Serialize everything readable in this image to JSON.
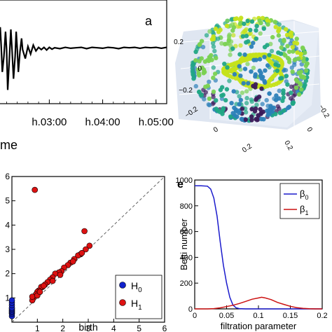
{
  "chart_data": [
    {
      "type": "line",
      "panel_letter": "a",
      "xlabel_fragment": "me",
      "x_ticks": [
        "h.03:00",
        "h.04:00",
        "h.05:00"
      ],
      "x_tick_values_hours": [
        3,
        4,
        5
      ],
      "xlim_hours": [
        2.05,
        5.2
      ],
      "ylim": [
        -1.0,
        1.0
      ],
      "series": [
        {
          "x_hours": [
            2.05,
            2.08,
            2.1,
            2.12,
            2.15,
            2.18,
            2.2,
            2.22,
            2.25,
            2.28,
            2.3,
            2.33,
            2.36,
            2.38,
            2.4,
            2.42,
            2.45,
            2.48,
            2.5,
            2.55,
            2.6,
            2.65,
            2.7,
            2.75,
            2.8,
            2.85,
            2.9,
            2.95,
            3.0,
            3.05,
            3.1,
            3.2,
            3.3,
            3.4,
            3.5,
            3.6,
            3.7,
            3.8,
            3.9,
            4.0,
            4.1,
            4.2,
            4.3,
            4.4,
            4.5,
            4.6,
            4.7,
            4.8,
            4.9,
            5.0,
            5.1,
            5.2
          ],
          "values": [
            0.05,
            0.55,
            0.1,
            -0.45,
            -0.1,
            0.45,
            0.05,
            -0.85,
            -0.2,
            0.5,
            0.1,
            -0.6,
            -0.1,
            0.45,
            0.05,
            -0.45,
            0.0,
            0.3,
            0.05,
            -0.15,
            0.12,
            -0.05,
            0.15,
            0.02,
            0.1,
            0.05,
            0.1,
            0.04,
            0.1,
            0.06,
            0.09,
            0.07,
            0.1,
            0.08,
            0.09,
            0.1,
            0.07,
            0.1,
            0.09,
            0.08,
            0.1,
            0.09,
            0.07,
            0.1,
            0.09,
            0.1,
            0.08,
            0.1,
            0.09,
            0.1,
            0.08,
            0.1
          ]
        }
      ]
    },
    {
      "type": "scatter3d",
      "axis_ticks_vertical": [
        "0.2",
        "0",
        "−0.2"
      ],
      "axis_ticks_depth": [
        "−0.2",
        "0",
        "0.2"
      ],
      "axis_ticks_right": [
        "0.2",
        "0",
        "−0.2"
      ],
      "colorscale": [
        "#3b1a5a",
        "#2c7fb8",
        "#21a685",
        "#7ad151",
        "#c5e21b"
      ],
      "note": "point cloud on a sphere, colored by value (viridis)"
    },
    {
      "type": "scatter",
      "xlabel": "birth",
      "xlim": [
        0,
        6
      ],
      "ylim": [
        0,
        6
      ],
      "x_ticks": [
        "1",
        "2",
        "3",
        "4",
        "5",
        "6"
      ],
      "y_ticks": [
        "1",
        "2",
        "3",
        "4",
        "5",
        "6"
      ],
      "diagonal": true,
      "legend_position": "bottom-right",
      "series": [
        {
          "name": "H",
          "subscript": "0",
          "color": "#1122cc",
          "points": [
            [
              0,
              0.25
            ],
            [
              0,
              0.35
            ],
            [
              0,
              0.4
            ],
            [
              0,
              0.45
            ],
            [
              0,
              0.5
            ],
            [
              0,
              0.55
            ],
            [
              0,
              0.6
            ],
            [
              0,
              0.7
            ],
            [
              0,
              0.8
            ],
            [
              0,
              0.9
            ]
          ]
        },
        {
          "name": "H",
          "subscript": "1",
          "color": "#dd1111",
          "points": [
            [
              0.9,
              5.45
            ],
            [
              2.85,
              3.75
            ],
            [
              3.05,
              3.15
            ],
            [
              2.9,
              3.0
            ],
            [
              2.7,
              2.8
            ],
            [
              2.6,
              2.75
            ],
            [
              2.45,
              2.6
            ],
            [
              2.3,
              2.45
            ],
            [
              2.2,
              2.35
            ],
            [
              2.05,
              2.25
            ],
            [
              1.95,
              2.1
            ],
            [
              1.85,
              2.05
            ],
            [
              1.7,
              2.0
            ],
            [
              1.6,
              1.85
            ],
            [
              1.5,
              1.75
            ],
            [
              1.4,
              1.65
            ],
            [
              1.3,
              1.55
            ],
            [
              1.2,
              1.45
            ],
            [
              1.15,
              1.45
            ],
            [
              1.05,
              1.3
            ],
            [
              1.0,
              1.25
            ],
            [
              0.95,
              1.15
            ],
            [
              0.85,
              1.0
            ],
            [
              0.8,
              0.9
            ],
            [
              0.8,
              1.05
            ],
            [
              1.0,
              1.1
            ],
            [
              1.1,
              1.25
            ],
            [
              1.6,
              1.7
            ],
            [
              1.9,
              1.95
            ],
            [
              2.4,
              2.5
            ],
            [
              2.75,
              2.85
            ],
            [
              1.25,
              1.5
            ]
          ]
        }
      ]
    },
    {
      "type": "line",
      "panel_letter": "e",
      "xlabel": "filtration parameter",
      "ylabel": "Betti number",
      "xlim": [
        0,
        0.2
      ],
      "ylim": [
        0,
        1000
      ],
      "x_ticks": [
        "0",
        "0.05",
        "0.1",
        "0.15",
        "0.2"
      ],
      "x_tick_values": [
        0,
        0.05,
        0.1,
        0.15,
        0.2
      ],
      "y_ticks": [
        "0",
        "200",
        "400",
        "600",
        "800",
        "1000"
      ],
      "y_tick_values": [
        0,
        200,
        400,
        600,
        800,
        1000
      ],
      "legend_position": "top-right",
      "series": [
        {
          "name": "β",
          "subscript": "0",
          "color": "#1a1acc",
          "x": [
            0,
            0.01,
            0.02,
            0.025,
            0.03,
            0.035,
            0.04,
            0.045,
            0.05,
            0.055,
            0.06,
            0.065,
            0.07,
            0.08,
            0.1,
            0.15,
            0.2
          ],
          "values": [
            955,
            955,
            952,
            930,
            860,
            720,
            520,
            340,
            200,
            90,
            30,
            8,
            2,
            0,
            0,
            0,
            0
          ]
        },
        {
          "name": "β",
          "subscript": "1",
          "color": "#cc1111",
          "x": [
            0,
            0.02,
            0.03,
            0.04,
            0.05,
            0.06,
            0.07,
            0.08,
            0.09,
            0.1,
            0.105,
            0.11,
            0.12,
            0.13,
            0.14,
            0.15,
            0.16,
            0.17,
            0.18,
            0.19,
            0.2
          ],
          "values": [
            0,
            0,
            2,
            8,
            18,
            28,
            42,
            58,
            75,
            85,
            90,
            86,
            72,
            50,
            35,
            20,
            10,
            4,
            1,
            0,
            0
          ]
        }
      ]
    }
  ]
}
